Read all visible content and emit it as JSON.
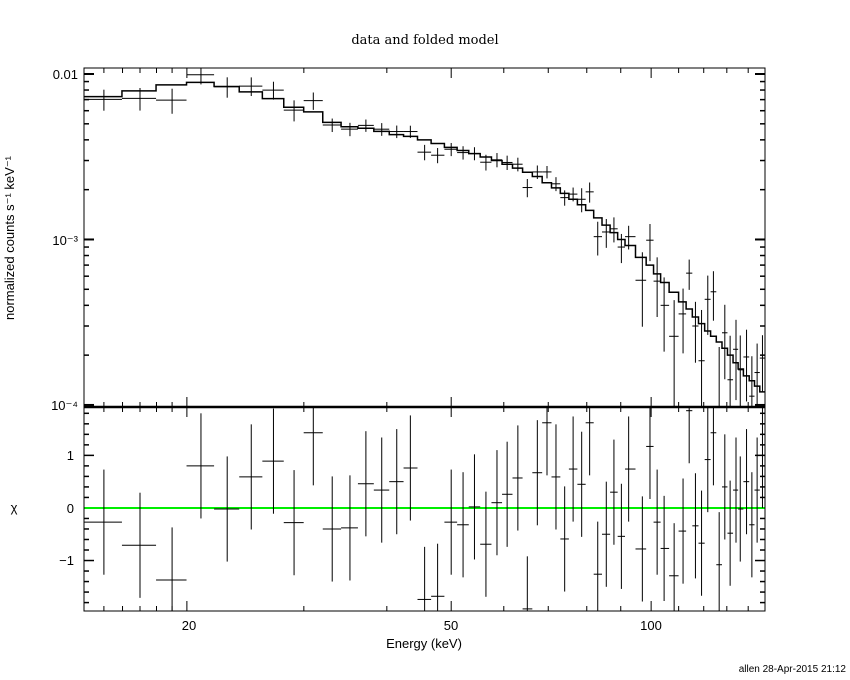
{
  "chart_data": {
    "type": "scatter",
    "title": "data and folded model",
    "xlabel": "Energy (keV)",
    "x_scale": "log",
    "xlim": [
      14.0,
      148.4
    ],
    "x_tick_labels": [
      "20",
      "50",
      "100"
    ],
    "footer": "allen 28-Apr-2015 21:12",
    "panels": [
      {
        "name": "spectrum",
        "ylabel": "normalized counts s⁻¹ keV⁻¹",
        "y_scale": "log",
        "ylim": [
          9.72e-05,
          0.01087
        ],
        "y_tick_labels": [
          {
            "label": "0.01",
            "value": 0.01
          },
          {
            "label": "10⁻³",
            "value": 0.001
          },
          {
            "label": "10⁻⁴",
            "value": 0.0001
          }
        ],
        "grid": false
      },
      {
        "name": "residuals",
        "ylabel": "χ",
        "y_scale": "linear",
        "ylim": [
          -1.96,
          1.92
        ],
        "y_tick_labels": [
          {
            "label": "1",
            "value": 1
          },
          {
            "label": "0",
            "value": 0
          },
          {
            "label": "−1",
            "value": -1
          }
        ],
        "zero_line_color": "#00ee00",
        "grid": false
      }
    ],
    "energy": [
      15.0,
      17.0,
      19.0,
      21.0,
      23.0,
      25.0,
      27.0,
      29.0,
      31.0,
      33.1,
      35.2,
      37.2,
      39.3,
      41.4,
      43.4,
      45.6,
      47.7,
      50.0,
      52.1,
      54.2,
      56.4,
      58.6,
      60.7,
      63.0,
      65.1,
      67.4,
      69.7,
      71.9,
      74.1,
      76.3,
      78.6,
      80.8,
      83.1,
      85.6,
      87.9,
      90.2,
      92.5,
      97.0,
      99.6,
      102.1,
      104.6,
      108.3,
      111.7,
      114.1,
      116.6,
      119.1,
      121.7,
      124.1,
      126.6,
      129.1,
      131.5,
      134.2,
      136.2,
      139.2,
      141.8,
      144.4,
      147.1
    ],
    "data_rate": [
      0.00702,
      0.00712,
      0.00695,
      0.0099,
      0.00837,
      0.00845,
      0.00799,
      0.00605,
      0.0069,
      0.00492,
      0.00464,
      0.00489,
      0.00464,
      0.00449,
      0.00449,
      0.00337,
      0.00323,
      0.00351,
      0.00335,
      0.00331,
      0.00293,
      0.00303,
      0.00292,
      0.00285,
      0.00206,
      0.00256,
      0.00256,
      0.00217,
      0.00179,
      0.00188,
      0.00175,
      0.00194,
      0.00104,
      0.00111,
      0.00116,
      0.0009,
      0.00104,
      0.000567,
      0.00099,
      0.00056,
      0.0004,
      0.00026,
      0.000355,
      0.000626,
      0.0003,
      0.000185,
      0.000435,
      0.000483,
      8.4e-05,
      0.000273,
      0.000142,
      0.000217,
      0.000163,
      0.000195,
      0.000113,
      0.000157,
      0.000192
    ],
    "data_error": [
      0.00102,
      0.00111,
      0.0012,
      0.00125,
      0.00118,
      0.00109,
      0.00099,
      0.00088,
      0.00083,
      0.00046,
      0.00043,
      0.00042,
      0.00041,
      0.00039,
      0.00038,
      0.00036,
      0.00034,
      0.00032,
      0.00031,
      0.0003,
      0.00032,
      0.0003,
      0.00029,
      0.00027,
      0.00026,
      0.00024,
      0.00022,
      0.00021,
      0.00019,
      0.00018,
      0.00029,
      0.00027,
      0.00024,
      0.00022,
      0.0002,
      0.00018,
      0.00017,
      0.00027,
      0.00025,
      0.00022,
      0.00019,
      0.00017,
      0.00015,
      0.00013,
      0.00012,
      0.00019,
      0.00017,
      0.00016,
      0.00014,
      0.00013,
      0.00012,
      0.00011,
      0.0001,
      9e-05,
      8.4e-05,
      7.8e-05,
      7.2e-05
    ],
    "model_rate": [
      0.0073,
      0.0079,
      0.0086,
      0.0089,
      0.0084,
      0.0078,
      0.0071,
      0.0063,
      0.0059,
      0.0051,
      0.0048,
      0.0047,
      0.0045,
      0.0043,
      0.0042,
      0.004,
      0.0038,
      0.0036,
      0.00345,
      0.0033,
      0.00315,
      0.003,
      0.00285,
      0.0027,
      0.00255,
      0.0024,
      0.0022,
      0.00205,
      0.0019,
      0.00175,
      0.00162,
      0.0015,
      0.00135,
      0.00122,
      0.0011,
      0.001,
      0.00092,
      0.00078,
      0.0007,
      0.00062,
      0.00055,
      0.00048,
      0.00042,
      0.00038,
      0.00034,
      0.00031,
      0.00028,
      0.00026,
      0.00024,
      0.00022,
      0.0002,
      0.00018,
      0.000165,
      0.00015,
      0.00014,
      0.00013,
      0.00012
    ],
    "chi": [
      -0.27,
      -0.71,
      -1.37,
      0.8,
      -0.02,
      0.59,
      0.89,
      -0.28,
      1.43,
      -0.4,
      -0.38,
      0.46,
      0.34,
      0.5,
      0.76,
      -1.74,
      -1.68,
      -0.27,
      -0.32,
      0.02,
      -0.69,
      0.1,
      0.26,
      0.57,
      -1.92,
      0.67,
      1.62,
      0.59,
      -0.59,
      0.74,
      0.45,
      1.62,
      -1.26,
      -0.5,
      0.3,
      -0.54,
      0.74,
      -0.78,
      1.17,
      -0.27,
      -0.77,
      -1.29,
      -0.44,
      1.85,
      -0.34,
      -0.67,
      0.92,
      1.43,
      -1.08,
      0.4,
      -0.48,
      0.34,
      -0.02,
      0.5,
      -0.32,
      0.34,
      1.0
    ],
    "chi_error": 1
  }
}
